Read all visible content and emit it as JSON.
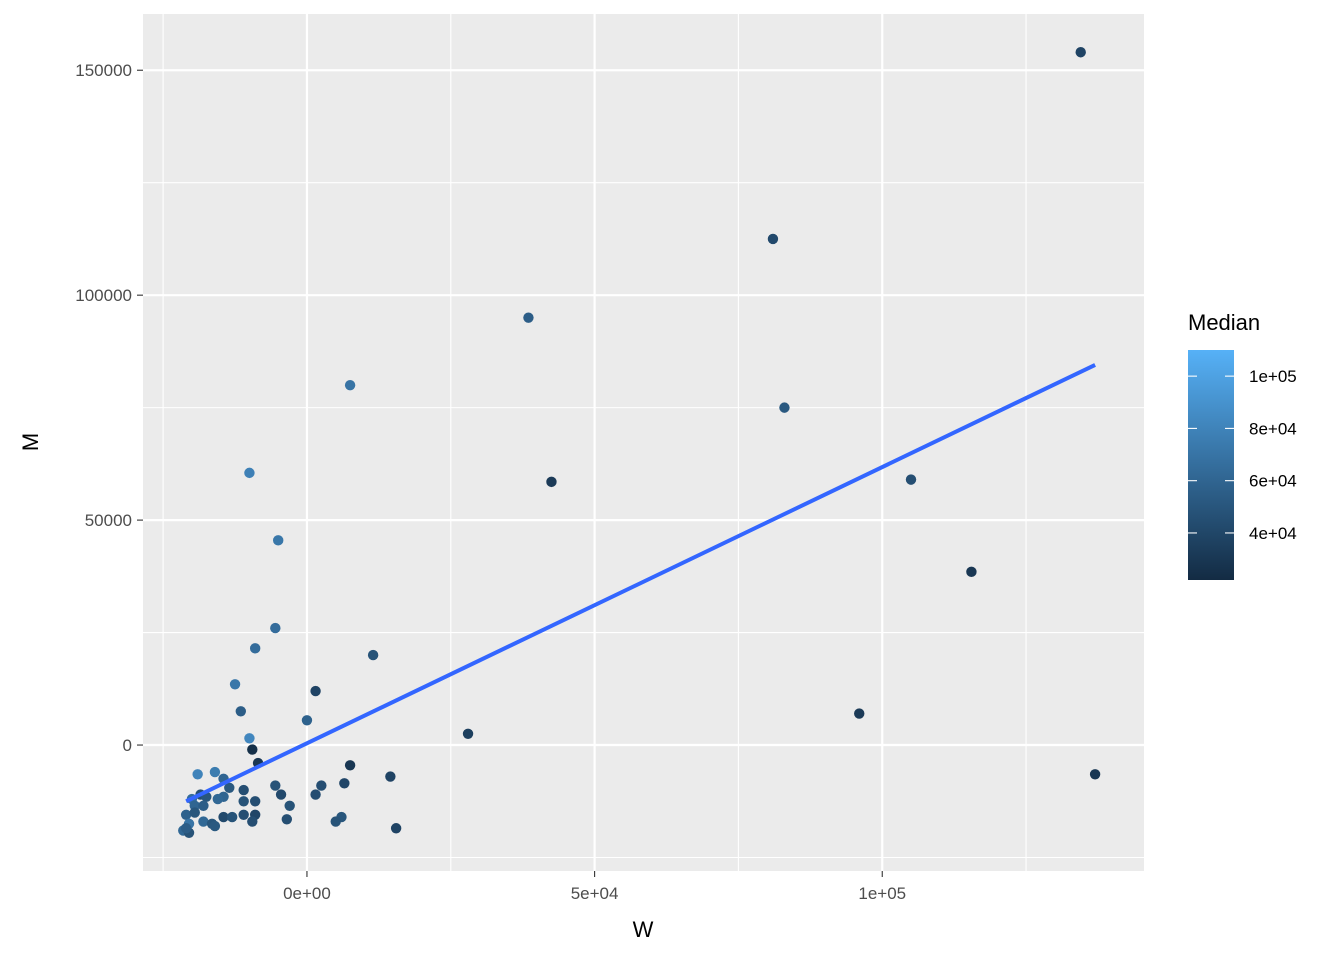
{
  "chart_data": {
    "type": "scatter",
    "xlabel": "W",
    "ylabel": "M",
    "xlim": [
      -28500,
      145500
    ],
    "ylim": [
      -28000,
      162500
    ],
    "x_ticks": [
      0,
      50000,
      100000
    ],
    "x_tick_labels": [
      "0e+00",
      "5e+04",
      "1e+05"
    ],
    "x_minor_ticks": [
      -25000,
      25000,
      75000,
      125000
    ],
    "y_ticks": [
      0,
      50000,
      100000,
      150000
    ],
    "y_tick_labels": [
      "0",
      "50000",
      "100000",
      "150000"
    ],
    "y_minor_ticks": [
      -25000,
      25000,
      75000,
      125000
    ],
    "grid": true,
    "panel_background": "#ebebeb",
    "grid_color": "#ffffff",
    "color_low": "#132b43",
    "color_high": "#56b1f7",
    "legend": {
      "title": "Median",
      "placement": "right",
      "range": [
        22000,
        110000
      ],
      "ticks": [
        40000,
        60000,
        80000,
        100000
      ],
      "tick_labels": [
        "4e+04",
        "6e+04",
        "8e+04",
        "1e+05"
      ]
    },
    "trend_line": {
      "color": "#3366ff",
      "x": [
        -21000,
        137000
      ],
      "y": [
        -12500,
        84500
      ]
    },
    "points": [
      {
        "x": 134500,
        "y": 154000,
        "median": 38000
      },
      {
        "x": 81000,
        "y": 112500,
        "median": 42000
      },
      {
        "x": 38500,
        "y": 95000,
        "median": 55000
      },
      {
        "x": 7500,
        "y": 80000,
        "median": 70000
      },
      {
        "x": 83000,
        "y": 75000,
        "median": 52000
      },
      {
        "x": -10000,
        "y": 60500,
        "median": 78000
      },
      {
        "x": 42500,
        "y": 58500,
        "median": 32000
      },
      {
        "x": 105000,
        "y": 59000,
        "median": 45000
      },
      {
        "x": -5000,
        "y": 45500,
        "median": 72000
      },
      {
        "x": 115500,
        "y": 38500,
        "median": 30000
      },
      {
        "x": -5500,
        "y": 26000,
        "median": 65000
      },
      {
        "x": -9000,
        "y": 21500,
        "median": 65000
      },
      {
        "x": 11500,
        "y": 20000,
        "median": 48000
      },
      {
        "x": -12500,
        "y": 13500,
        "median": 72000
      },
      {
        "x": 1500,
        "y": 12000,
        "median": 38000
      },
      {
        "x": -11500,
        "y": 7500,
        "median": 55000
      },
      {
        "x": 0,
        "y": 5500,
        "median": 58000
      },
      {
        "x": 96000,
        "y": 7000,
        "median": 32000
      },
      {
        "x": 28000,
        "y": 2500,
        "median": 35000
      },
      {
        "x": -10000,
        "y": 1500,
        "median": 82000
      },
      {
        "x": -9500,
        "y": -1000,
        "median": 25000
      },
      {
        "x": -8500,
        "y": -4000,
        "median": 30000
      },
      {
        "x": 7500,
        "y": -4500,
        "median": 30000
      },
      {
        "x": -19000,
        "y": -6500,
        "median": 80000
      },
      {
        "x": -16000,
        "y": -6000,
        "median": 75000
      },
      {
        "x": -14500,
        "y": -7500,
        "median": 60000
      },
      {
        "x": 14500,
        "y": -7000,
        "median": 38000
      },
      {
        "x": 137000,
        "y": -6500,
        "median": 30000
      },
      {
        "x": 6500,
        "y": -8500,
        "median": 40000
      },
      {
        "x": 2500,
        "y": -9000,
        "median": 45000
      },
      {
        "x": -5500,
        "y": -9000,
        "median": 48000
      },
      {
        "x": -13500,
        "y": -9500,
        "median": 52000
      },
      {
        "x": -11000,
        "y": -10000,
        "median": 45000
      },
      {
        "x": -18500,
        "y": -11000,
        "median": 45000
      },
      {
        "x": -4500,
        "y": -11000,
        "median": 42000
      },
      {
        "x": 1500,
        "y": -11000,
        "median": 45000
      },
      {
        "x": -17500,
        "y": -11500,
        "median": 50000
      },
      {
        "x": -14500,
        "y": -11500,
        "median": 60000
      },
      {
        "x": -15500,
        "y": -12000,
        "median": 62000
      },
      {
        "x": -20000,
        "y": -12000,
        "median": 65000
      },
      {
        "x": -11000,
        "y": -12500,
        "median": 48000
      },
      {
        "x": -9000,
        "y": -12500,
        "median": 45000
      },
      {
        "x": -19500,
        "y": -13500,
        "median": 60000
      },
      {
        "x": -18000,
        "y": -13500,
        "median": 55000
      },
      {
        "x": -3000,
        "y": -13500,
        "median": 48000
      },
      {
        "x": -21000,
        "y": -15500,
        "median": 58000
      },
      {
        "x": -19500,
        "y": -15000,
        "median": 50000
      },
      {
        "x": -14500,
        "y": -16000,
        "median": 42000
      },
      {
        "x": -13000,
        "y": -16000,
        "median": 48000
      },
      {
        "x": -11000,
        "y": -15500,
        "median": 45000
      },
      {
        "x": -9000,
        "y": -15500,
        "median": 40000
      },
      {
        "x": -3500,
        "y": -16500,
        "median": 45000
      },
      {
        "x": 6000,
        "y": -16000,
        "median": 50000
      },
      {
        "x": 5000,
        "y": -17000,
        "median": 48000
      },
      {
        "x": -18000,
        "y": -17000,
        "median": 62000
      },
      {
        "x": -16500,
        "y": -17500,
        "median": 50000
      },
      {
        "x": -16000,
        "y": -18000,
        "median": 52000
      },
      {
        "x": -9500,
        "y": -17000,
        "median": 45000
      },
      {
        "x": -20500,
        "y": -17500,
        "median": 70000
      },
      {
        "x": -21500,
        "y": -19000,
        "median": 62000
      },
      {
        "x": -20500,
        "y": -19500,
        "median": 48000
      },
      {
        "x": 15500,
        "y": -18500,
        "median": 38000
      },
      {
        "x": -21000,
        "y": -18500,
        "median": 55000
      }
    ]
  }
}
